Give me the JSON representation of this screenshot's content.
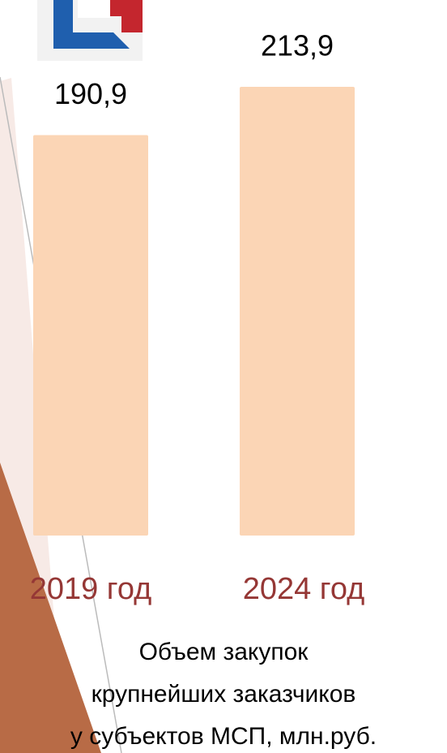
{
  "chart_data": {
    "type": "bar",
    "categories": [
      "2019 год",
      "2024 год"
    ],
    "values": [
      190.9,
      213.9
    ],
    "value_labels": [
      "190,9",
      "213,9"
    ],
    "color": "#fbd5b5",
    "title_lines": [
      "Объем закупок",
      "крупнейших заказчиков",
      "у субъектов МСП, млн.руб."
    ]
  }
}
